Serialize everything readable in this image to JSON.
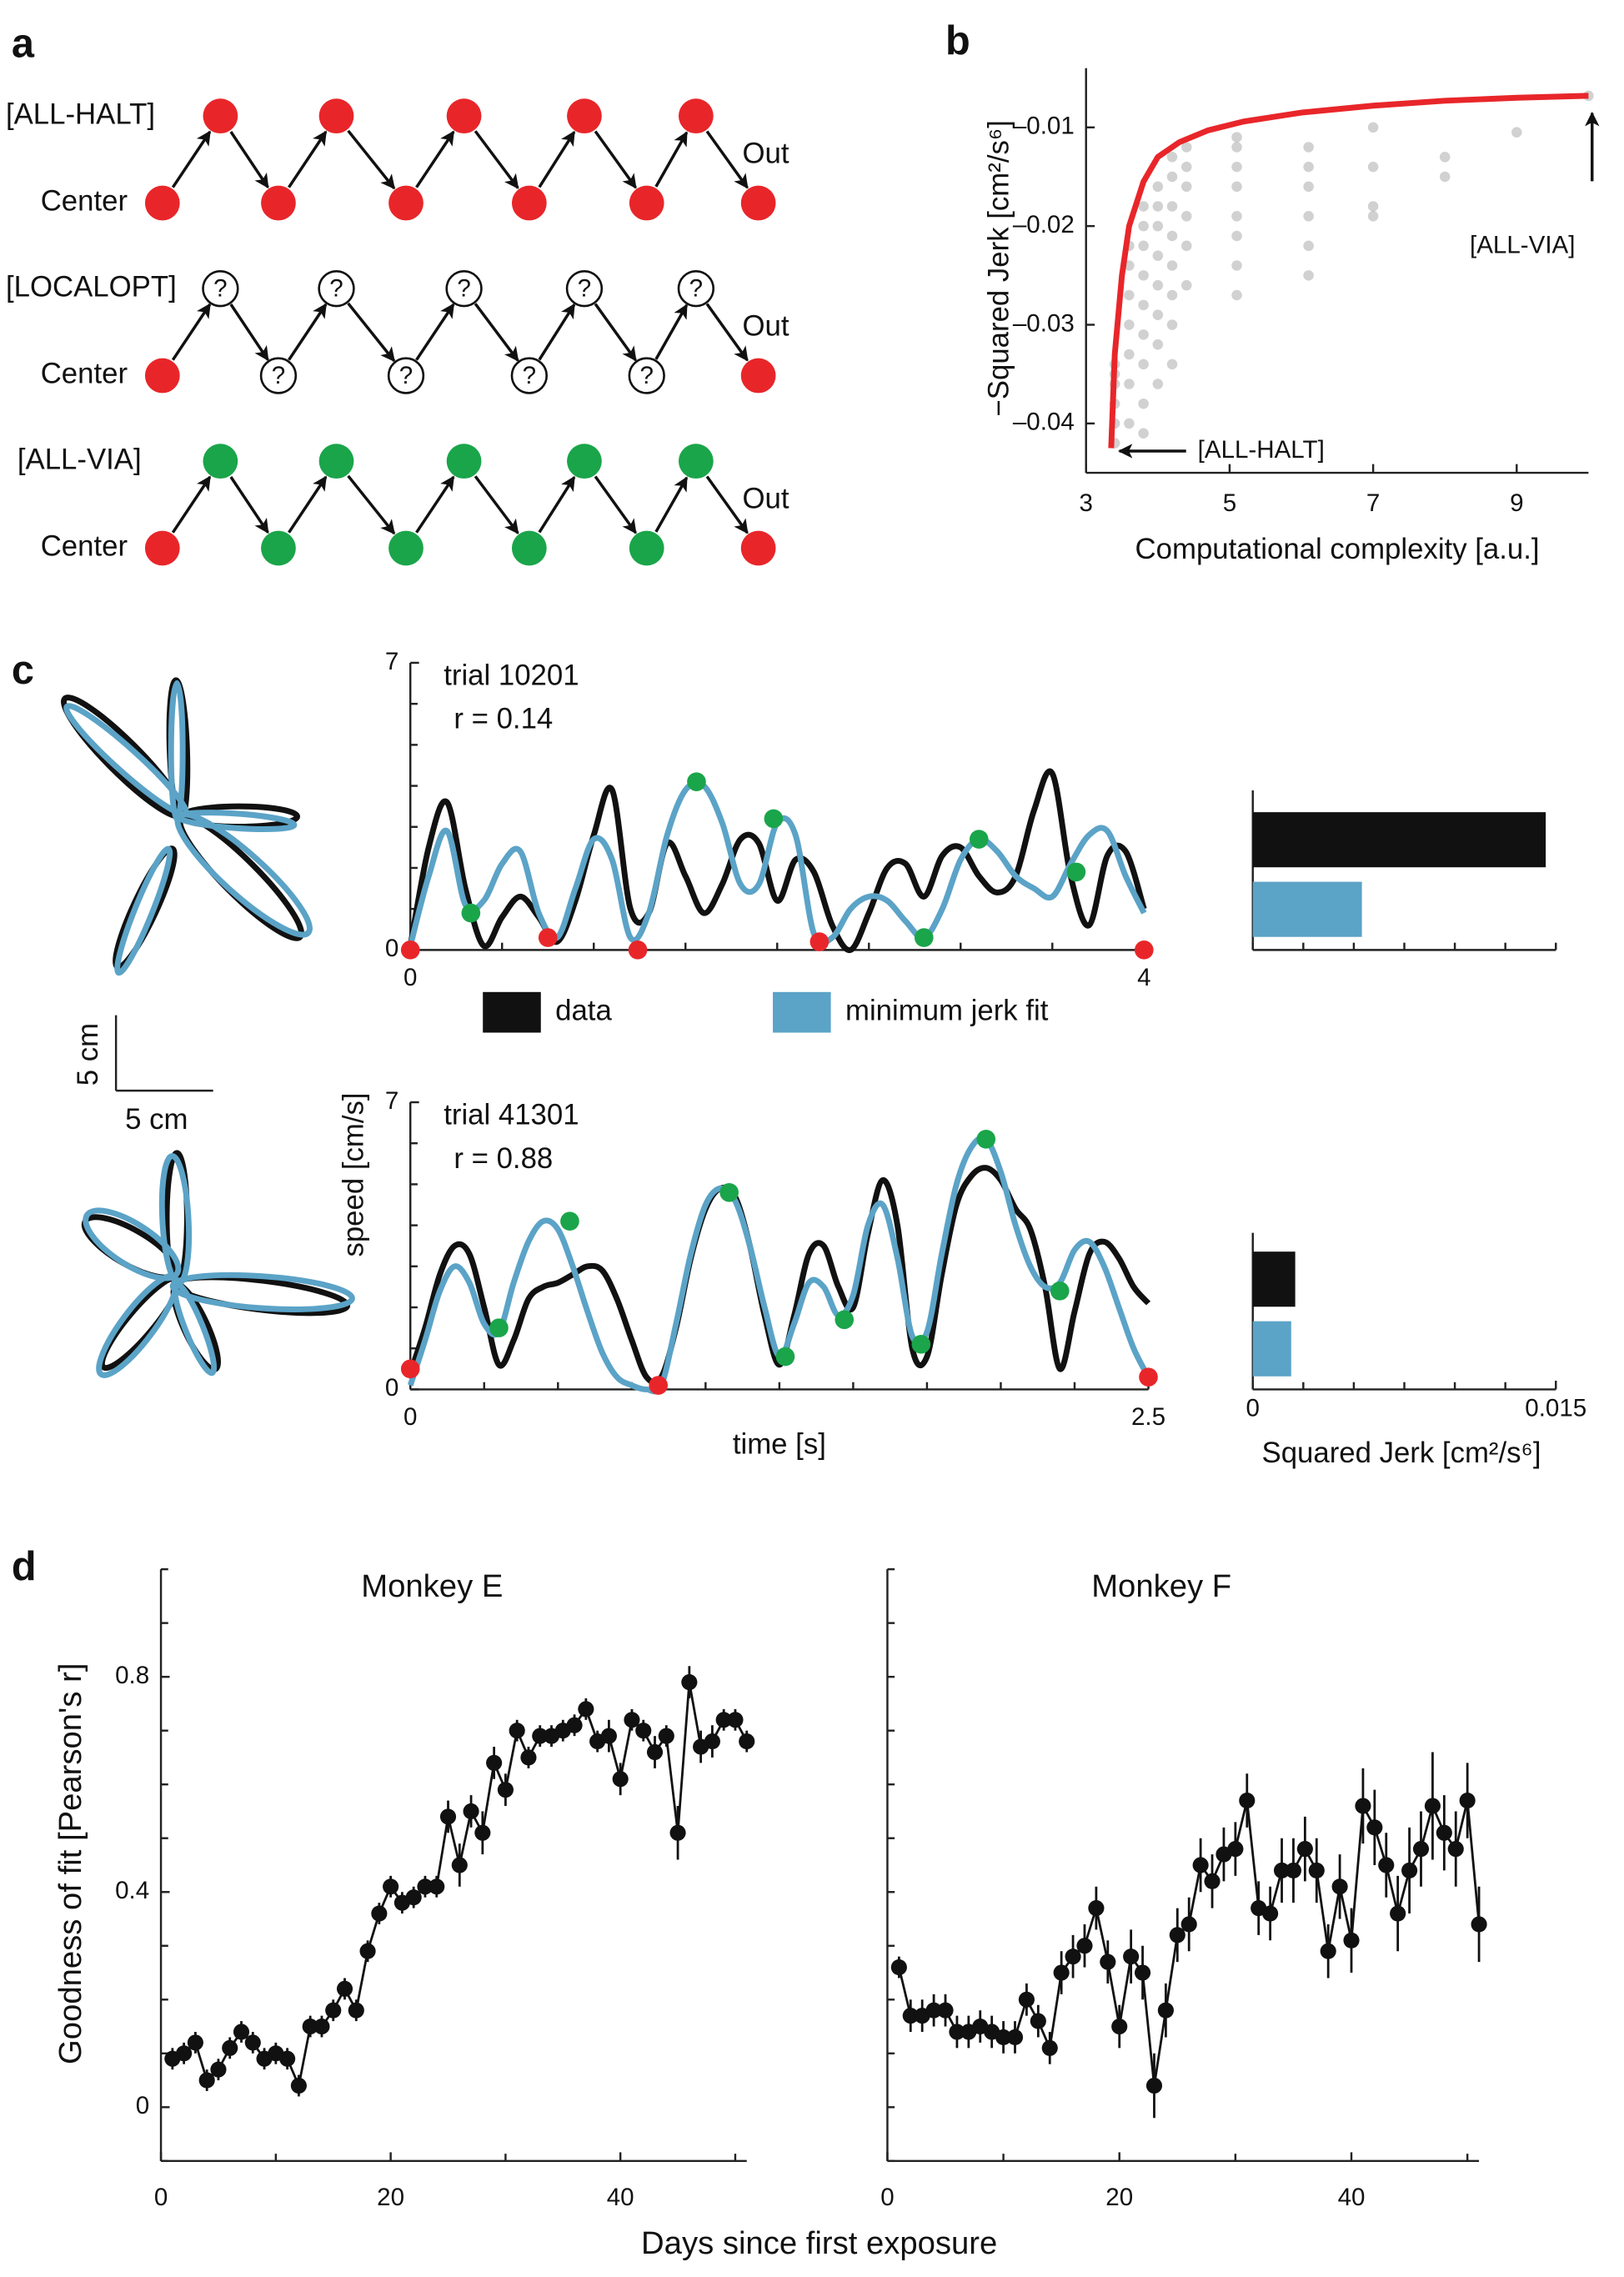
{
  "panel_labels": [
    "a",
    "b",
    "c",
    "d"
  ],
  "diagram": {
    "endpoint_color": "#e8262a",
    "rows": [
      {
        "label": "[ALL-HALT]",
        "start": "Center",
        "end": "Out",
        "via_color": "#e8262a"
      },
      {
        "label": "[LOCALOPT]",
        "start": "Center",
        "end": "Out",
        "via_color": "#ffffff",
        "marker": "?"
      },
      {
        "label": "[ALL-VIA]",
        "start": "Center",
        "end": "Out",
        "via_color": "#1aa54a"
      }
    ]
  },
  "scale_bar": {
    "vertical": "5 cm",
    "horizontal": "5 cm"
  },
  "chart_data": [
    {
      "type": "scatter",
      "xlabel": "Computational complexity [a.u.]",
      "ylabel": "−Squared Jerk [cm²/s⁶]",
      "xlim": [
        3,
        10
      ],
      "ylim": [
        -0.045,
        -0.004
      ],
      "xticks": [
        3,
        5,
        7,
        9
      ],
      "yticks": [
        {
          "value": -0.04,
          "label": "–0.04"
        },
        {
          "value": -0.03,
          "label": "–0.03"
        },
        {
          "value": -0.02,
          "label": "–0.02"
        },
        {
          "value": -0.01,
          "label": "–0.01"
        }
      ],
      "annotations": [
        "[ALL-HALT]",
        "[ALL-VIA]"
      ],
      "points": {
        "color": "#9a9a9a",
        "x": [
          3.4,
          3.4,
          3.4,
          3.4,
          3.4,
          3.4,
          3.6,
          3.6,
          3.6,
          3.6,
          3.6,
          3.6,
          3.6,
          3.8,
          3.8,
          3.8,
          3.8,
          3.8,
          3.8,
          3.8,
          3.8,
          3.8,
          4.0,
          4.0,
          4.0,
          4.0,
          4.0,
          4.0,
          4.0,
          4.0,
          4.2,
          4.2,
          4.2,
          4.2,
          4.2,
          4.2,
          4.2,
          4.2,
          4.4,
          4.4,
          4.4,
          4.4,
          4.4,
          4.4,
          5.1,
          5.1,
          5.1,
          5.1,
          5.1,
          5.1,
          5.1,
          5.1,
          6.1,
          6.1,
          6.1,
          6.1,
          6.1,
          6.1,
          7,
          7,
          7,
          7,
          8,
          8,
          9,
          10
        ],
        "y": [
          -0.042,
          -0.04,
          -0.038,
          -0.036,
          -0.035,
          -0.034,
          -0.04,
          -0.036,
          -0.033,
          -0.03,
          -0.027,
          -0.024,
          -0.022,
          -0.041,
          -0.038,
          -0.034,
          -0.031,
          -0.028,
          -0.025,
          -0.022,
          -0.02,
          -0.018,
          -0.036,
          -0.032,
          -0.029,
          -0.026,
          -0.023,
          -0.02,
          -0.018,
          -0.016,
          -0.034,
          -0.03,
          -0.027,
          -0.024,
          -0.021,
          -0.018,
          -0.015,
          -0.013,
          -0.026,
          -0.022,
          -0.019,
          -0.016,
          -0.014,
          -0.012,
          -0.027,
          -0.024,
          -0.021,
          -0.019,
          -0.016,
          -0.014,
          -0.012,
          -0.011,
          -0.025,
          -0.022,
          -0.019,
          -0.016,
          -0.014,
          -0.012,
          -0.019,
          -0.018,
          -0.014,
          -0.01,
          -0.015,
          -0.013,
          -0.0105,
          -0.0068
        ]
      },
      "frontier": {
        "color": "#e8262a",
        "x": [
          3.35,
          3.4,
          3.5,
          3.6,
          3.8,
          4.0,
          4.3,
          4.7,
          5.2,
          6,
          7,
          8,
          9,
          10
        ],
        "y": [
          -0.0425,
          -0.033,
          -0.025,
          -0.02,
          -0.0155,
          -0.013,
          -0.0115,
          -0.0103,
          -0.0094,
          -0.0085,
          -0.0078,
          -0.0073,
          -0.007,
          -0.0068
        ]
      }
    },
    {
      "type": "line",
      "title": "trial 10201",
      "subtitle": "r = 0.14",
      "ylabel": "speed [cm/s]",
      "xlim": [
        0,
        4
      ],
      "ylim": [
        0,
        7
      ],
      "xticks": [
        0,
        4
      ],
      "yticks": [
        0,
        7
      ],
      "minor_xticks": [
        0.5,
        1,
        1.5,
        2,
        2.5,
        3,
        3.5
      ],
      "minor_yticks": [
        1,
        2,
        3,
        4,
        5,
        6
      ],
      "x": [
        0,
        0.1,
        0.2,
        0.3,
        0.4,
        0.5,
        0.6,
        0.7,
        0.8,
        0.9,
        1,
        1.1,
        1.2,
        1.3,
        1.4,
        1.5,
        1.6,
        1.7,
        1.8,
        1.9,
        2,
        2.1,
        2.2,
        2.3,
        2.4,
        2.5,
        2.6,
        2.7,
        2.8,
        2.9,
        3,
        3.1,
        3.2,
        3.3,
        3.4,
        3.5,
        3.6,
        3.7,
        3.8,
        3.9,
        4
      ],
      "series": [
        {
          "name": "data",
          "color": "#111111",
          "values": [
            0.1,
            2.5,
            3.6,
            1.5,
            0.1,
            0.8,
            1.3,
            0.8,
            0.2,
            1.2,
            2.8,
            3.9,
            1.0,
            0.9,
            2.6,
            1.8,
            0.9,
            1.6,
            2.7,
            2.6,
            1.2,
            2.2,
            1.9,
            0.6,
            0.0,
            0.9,
            2.0,
            2.1,
            1.3,
            2.3,
            2.5,
            1.8,
            1.4,
            1.8,
            3.4,
            4.3,
            1.8,
            0.6,
            2.3,
            2.4,
            1.0
          ]
        },
        {
          "name": "minimum jerk fit",
          "color": "#5ba3c7",
          "values": [
            0.1,
            1.8,
            2.9,
            1.1,
            1.2,
            2.1,
            2.4,
            0.9,
            0.3,
            1.5,
            2.7,
            2.2,
            0.3,
            0.9,
            2.8,
            3.9,
            4.0,
            3.1,
            1.6,
            1.6,
            3.1,
            2.8,
            0.4,
            0.3,
            1.0,
            1.3,
            1.2,
            0.7,
            0.3,
            1.0,
            2.2,
            2.7,
            2.4,
            1.8,
            1.5,
            1.3,
            2.1,
            2.8,
            2.9,
            1.8,
            0.9
          ]
        }
      ],
      "halt_points": {
        "color": "#e8262a",
        "x": [
          0,
          0.75,
          1.24,
          2.23,
          4.0
        ],
        "y": [
          0,
          0.3,
          0,
          0.2,
          0
        ]
      },
      "via_points": {
        "color": "#1aa54a",
        "x": [
          0.33,
          1.56,
          1.98,
          2.8,
          3.1,
          3.63
        ],
        "y": [
          0.9,
          4.1,
          3.2,
          0.3,
          2.7,
          1.9
        ]
      }
    },
    {
      "type": "barh",
      "categories": [
        null,
        null
      ],
      "values": [
        0.0145,
        0.0054
      ],
      "colors": [
        "#111111",
        "#5ba3c7"
      ],
      "xlim": [
        0,
        0.015
      ],
      "minor_xticks": [
        0,
        0.0025,
        0.005,
        0.0075,
        0.01,
        0.0125,
        0.015
      ]
    },
    {
      "type": "line",
      "title": "trial 41301",
      "subtitle": "r = 0.88",
      "xlabel": "time [s]",
      "xlim": [
        0,
        2.5
      ],
      "ylim": [
        0,
        7
      ],
      "xticks": [
        0,
        2.5
      ],
      "yticks": [
        0,
        7
      ],
      "minor_xticks": [
        0.25,
        0.5,
        0.75,
        1,
        1.25,
        1.5,
        1.75,
        2,
        2.25
      ],
      "minor_yticks": [
        1,
        2,
        3,
        4,
        5,
        6
      ],
      "x": [
        0,
        0.05,
        0.1,
        0.15,
        0.2,
        0.25,
        0.3,
        0.35,
        0.4,
        0.45,
        0.5,
        0.55,
        0.6,
        0.65,
        0.7,
        0.75,
        0.8,
        0.85,
        0.9,
        0.95,
        1,
        1.05,
        1.1,
        1.15,
        1.2,
        1.25,
        1.3,
        1.35,
        1.4,
        1.45,
        1.5,
        1.55,
        1.6,
        1.65,
        1.7,
        1.75,
        1.8,
        1.85,
        1.9,
        1.95,
        2,
        2.05,
        2.1,
        2.15,
        2.2,
        2.25,
        2.3,
        2.35,
        2.4,
        2.45,
        2.5
      ],
      "series": [
        {
          "color": "#111111",
          "values": [
            0.4,
            1.5,
            2.8,
            3.5,
            3.3,
            2.0,
            0.6,
            1.2,
            2.2,
            2.5,
            2.6,
            2.8,
            3.0,
            2.9,
            2.2,
            1.2,
            0.3,
            0.3,
            1.5,
            3.2,
            4.4,
            4.9,
            4.7,
            3.5,
            1.8,
            0.6,
            1.8,
            3.3,
            3.5,
            2.5,
            2.0,
            3.8,
            5.1,
            4.0,
            1.0,
            0.8,
            2.8,
            4.5,
            5.2,
            5.4,
            5.1,
            4.4,
            3.9,
            2.5,
            0.5,
            1.9,
            3.3,
            3.6,
            3.2,
            2.5,
            2.1
          ]
        },
        {
          "color": "#5ba3c7",
          "values": [
            0.1,
            1.2,
            2.4,
            3.0,
            2.6,
            1.6,
            1.4,
            2.6,
            3.6,
            4.1,
            3.9,
            3.0,
            1.9,
            0.9,
            0.3,
            0.1,
            0,
            0.1,
            1.6,
            3.3,
            4.5,
            4.9,
            4.6,
            3.5,
            2.0,
            0.8,
            1.6,
            2.6,
            2.5,
            1.8,
            2.3,
            4.0,
            4.5,
            3.2,
            1.3,
            1.4,
            3.3,
            5.0,
            5.9,
            6.1,
            5.3,
            4.0,
            3.0,
            2.5,
            2.6,
            3.4,
            3.6,
            3.0,
            2.0,
            1.0,
            0.3
          ]
        }
      ],
      "halt_points": {
        "color": "#e8262a",
        "x": [
          0,
          0.84,
          2.5
        ],
        "y": [
          0.5,
          0.1,
          0.3
        ]
      },
      "via_points": {
        "color": "#1aa54a",
        "x": [
          0.3,
          0.54,
          1.08,
          1.27,
          1.47,
          1.73,
          1.95,
          2.2
        ],
        "y": [
          1.5,
          4.1,
          4.8,
          0.8,
          1.7,
          1.1,
          6.1,
          2.4
        ]
      }
    },
    {
      "type": "barh",
      "xlabel": "Squared Jerk [cm²/s⁶]",
      "categories": [
        null,
        null
      ],
      "values": [
        0.0021,
        0.0019
      ],
      "colors": [
        "#111111",
        "#5ba3c7"
      ],
      "xlim": [
        0,
        0.015
      ],
      "xticks": [
        0,
        0.015
      ],
      "minor_xticks": [
        0.0025,
        0.005,
        0.0075,
        0.01,
        0.0125
      ]
    },
    {
      "type": "errorbar",
      "title": "Monkey E",
      "ylabel": "Goodness of fit [Pearson's r]",
      "xlabel": "Days since first exposure",
      "color": "#111111",
      "xlim": [
        0,
        51
      ],
      "ylim": [
        -0.1,
        1.0
      ],
      "xticks": [
        0,
        20,
        40
      ],
      "yticks": [
        0,
        0.4,
        0.8
      ],
      "minor_xticks": [
        10,
        30,
        50
      ],
      "minor_yticks": [
        -0.1,
        0.1,
        0.2,
        0.3,
        0.5,
        0.6,
        0.7,
        0.9,
        1.0
      ],
      "x": [
        1,
        2,
        3,
        4,
        5,
        6,
        7,
        8,
        9,
        10,
        11,
        12,
        13,
        14,
        15,
        16,
        17,
        18,
        19,
        20,
        21,
        22,
        23,
        24,
        25,
        26,
        27,
        28,
        29,
        30,
        31,
        32,
        33,
        34,
        35,
        36,
        37,
        38,
        39,
        40,
        41,
        42,
        43,
        44,
        45,
        46,
        47,
        48,
        49,
        50,
        51
      ],
      "values": [
        0.09,
        0.1,
        0.12,
        0.05,
        0.07,
        0.11,
        0.14,
        0.12,
        0.09,
        0.1,
        0.09,
        0.04,
        0.15,
        0.15,
        0.18,
        0.22,
        0.18,
        0.29,
        0.36,
        0.41,
        0.38,
        0.39,
        0.41,
        0.41,
        0.54,
        0.45,
        0.55,
        0.51,
        0.64,
        0.59,
        0.7,
        0.65,
        0.69,
        0.69,
        0.7,
        0.71,
        0.74,
        0.68,
        0.69,
        0.61,
        0.72,
        0.7,
        0.66,
        0.69,
        0.51,
        0.79,
        0.67,
        0.68,
        0.72,
        0.72,
        0.68
      ],
      "errors": [
        0.02,
        0.02,
        0.02,
        0.02,
        0.02,
        0.02,
        0.02,
        0.02,
        0.02,
        0.02,
        0.02,
        0.02,
        0.02,
        0.02,
        0.02,
        0.02,
        0.02,
        0.02,
        0.02,
        0.02,
        0.02,
        0.02,
        0.02,
        0.02,
        0.03,
        0.04,
        0.03,
        0.04,
        0.03,
        0.03,
        0.02,
        0.02,
        0.02,
        0.02,
        0.02,
        0.02,
        0.02,
        0.02,
        0.03,
        0.03,
        0.02,
        0.02,
        0.03,
        0.02,
        0.05,
        0.03,
        0.03,
        0.03,
        0.02,
        0.02,
        0.02
      ]
    },
    {
      "type": "errorbar",
      "title": "Monkey F",
      "color": "#111111",
      "xlim": [
        0,
        51
      ],
      "ylim": [
        -0.1,
        1.0
      ],
      "xticks": [
        0,
        20,
        40
      ],
      "minor_xticks": [
        10,
        30,
        50
      ],
      "minor_yticks": [
        -0.1,
        0,
        0.1,
        0.2,
        0.3,
        0.4,
        0.5,
        0.6,
        0.7,
        0.8,
        0.9,
        1.0
      ],
      "x": [
        1,
        2,
        3,
        4,
        5,
        6,
        7,
        8,
        9,
        10,
        11,
        12,
        13,
        14,
        15,
        16,
        17,
        18,
        19,
        20,
        21,
        22,
        23,
        24,
        25,
        26,
        27,
        28,
        29,
        30,
        31,
        32,
        33,
        34,
        35,
        36,
        37,
        38,
        39,
        40,
        41,
        42,
        43,
        44,
        45,
        46,
        47,
        48,
        49,
        50,
        51
      ],
      "values": [
        0.26,
        0.17,
        0.17,
        0.18,
        0.18,
        0.14,
        0.14,
        0.15,
        0.14,
        0.13,
        0.13,
        0.2,
        0.16,
        0.11,
        0.25,
        0.28,
        0.3,
        0.37,
        0.27,
        0.15,
        0.28,
        0.25,
        0.04,
        0.18,
        0.32,
        0.34,
        0.45,
        0.42,
        0.47,
        0.48,
        0.57,
        0.37,
        0.36,
        0.44,
        0.44,
        0.48,
        0.44,
        0.29,
        0.41,
        0.31,
        0.56,
        0.52,
        0.45,
        0.36,
        0.44,
        0.48,
        0.56,
        0.51,
        0.48,
        0.57,
        0.34
      ],
      "errors": [
        0.02,
        0.03,
        0.03,
        0.03,
        0.03,
        0.03,
        0.03,
        0.03,
        0.03,
        0.03,
        0.03,
        0.03,
        0.03,
        0.03,
        0.04,
        0.04,
        0.04,
        0.04,
        0.04,
        0.04,
        0.05,
        0.05,
        0.06,
        0.05,
        0.05,
        0.05,
        0.05,
        0.05,
        0.05,
        0.05,
        0.05,
        0.05,
        0.05,
        0.06,
        0.06,
        0.06,
        0.06,
        0.05,
        0.06,
        0.06,
        0.07,
        0.07,
        0.06,
        0.07,
        0.08,
        0.07,
        0.1,
        0.07,
        0.07,
        0.07,
        0.07
      ]
    }
  ]
}
